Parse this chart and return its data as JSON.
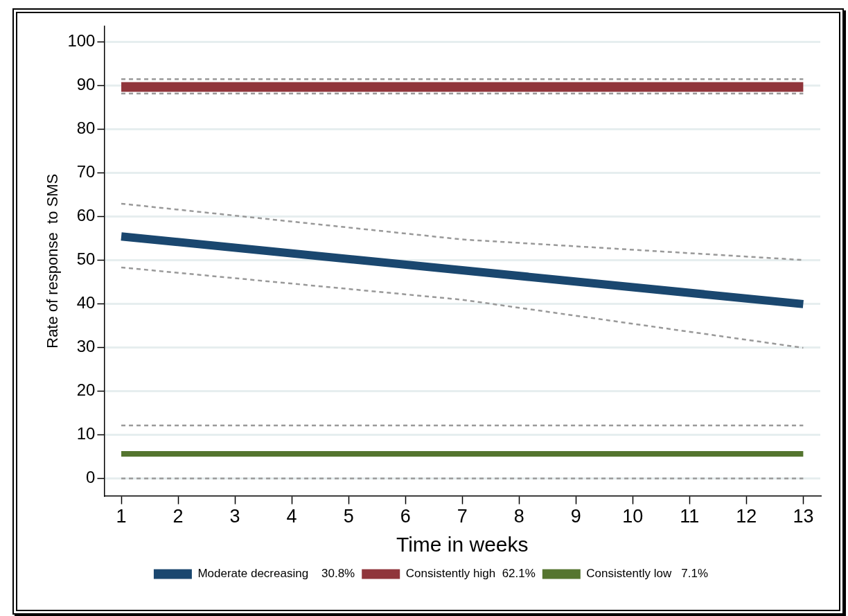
{
  "chart_data": {
    "type": "line",
    "xlabel": "Time in weeks",
    "ylabel": "Rate of response  to SMS",
    "x": [
      1,
      13
    ],
    "xlim": [
      0.7,
      13.3
    ],
    "xticks": [
      1,
      2,
      3,
      4,
      5,
      6,
      7,
      8,
      9,
      10,
      11,
      12,
      13
    ],
    "ylim": [
      -4,
      103.5
    ],
    "yticks": [
      0,
      10,
      20,
      30,
      40,
      50,
      60,
      70,
      80,
      90,
      100
    ],
    "grid": "y",
    "legend": "bottom",
    "marker": "none",
    "series": [
      {
        "name": "Moderate decreasing    30.8%",
        "color": "#1a476f",
        "values": [
          55.4,
          39.9
        ]
      },
      {
        "name": "Consistently high  62.1%",
        "color": "#90353b",
        "values": [
          89.6,
          89.6
        ]
      },
      {
        "name": "Consistently low   7.1%",
        "color": "#55752f",
        "values": [
          5.6,
          5.6
        ]
      },
      {
        "color": "#999999",
        "line_style": "dashed",
        "x": [
          1,
          7,
          13
        ],
        "values": [
          62.9,
          54.7,
          50.0
        ]
      },
      {
        "color": "#999999",
        "line_style": "dashed",
        "x": [
          1,
          7,
          13
        ],
        "values": [
          48.3,
          40.9,
          29.9
        ]
      },
      {
        "color": "#999999",
        "line_style": "dashed",
        "values": [
          91.4,
          91.4
        ]
      },
      {
        "color": "#999999",
        "line_style": "dashed",
        "values": [
          88.1,
          88.1
        ]
      },
      {
        "color": "#999999",
        "line_style": "dashed",
        "values": [
          12.1,
          12.1
        ]
      },
      {
        "color": "#999999",
        "line_style": "dashed",
        "values": [
          0,
          0
        ]
      }
    ]
  }
}
